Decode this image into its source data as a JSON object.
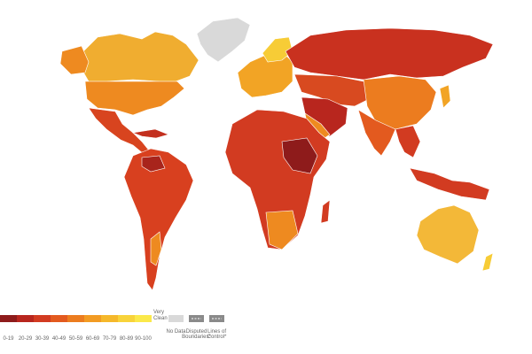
{
  "legend": {
    "scale": [
      {
        "label": "0-19",
        "color": "#8e1b1b"
      },
      {
        "label": "20-29",
        "color": "#b8261e"
      },
      {
        "label": "30-39",
        "color": "#d23b21"
      },
      {
        "label": "40-49",
        "color": "#e35a1f"
      },
      {
        "label": "50-59",
        "color": "#ec7c1f"
      },
      {
        "label": "60-69",
        "color": "#f29b23"
      },
      {
        "label": "70-79",
        "color": "#f5b82b"
      },
      {
        "label": "80-89",
        "color": "#f8d33a"
      },
      {
        "label": "90-100",
        "color": "#fbe94a"
      }
    ],
    "scale_end": [
      "Very",
      "Clean"
    ],
    "other": [
      {
        "lines": [
          "No Data"
        ],
        "color": "#d9d9d9"
      },
      {
        "lines": [
          "Disputed",
          "Boundaries*"
        ],
        "color": "#8a8a8a"
      },
      {
        "lines": [
          "Lines of",
          "Control*"
        ],
        "color": "#8a8a8a"
      }
    ]
  }
}
